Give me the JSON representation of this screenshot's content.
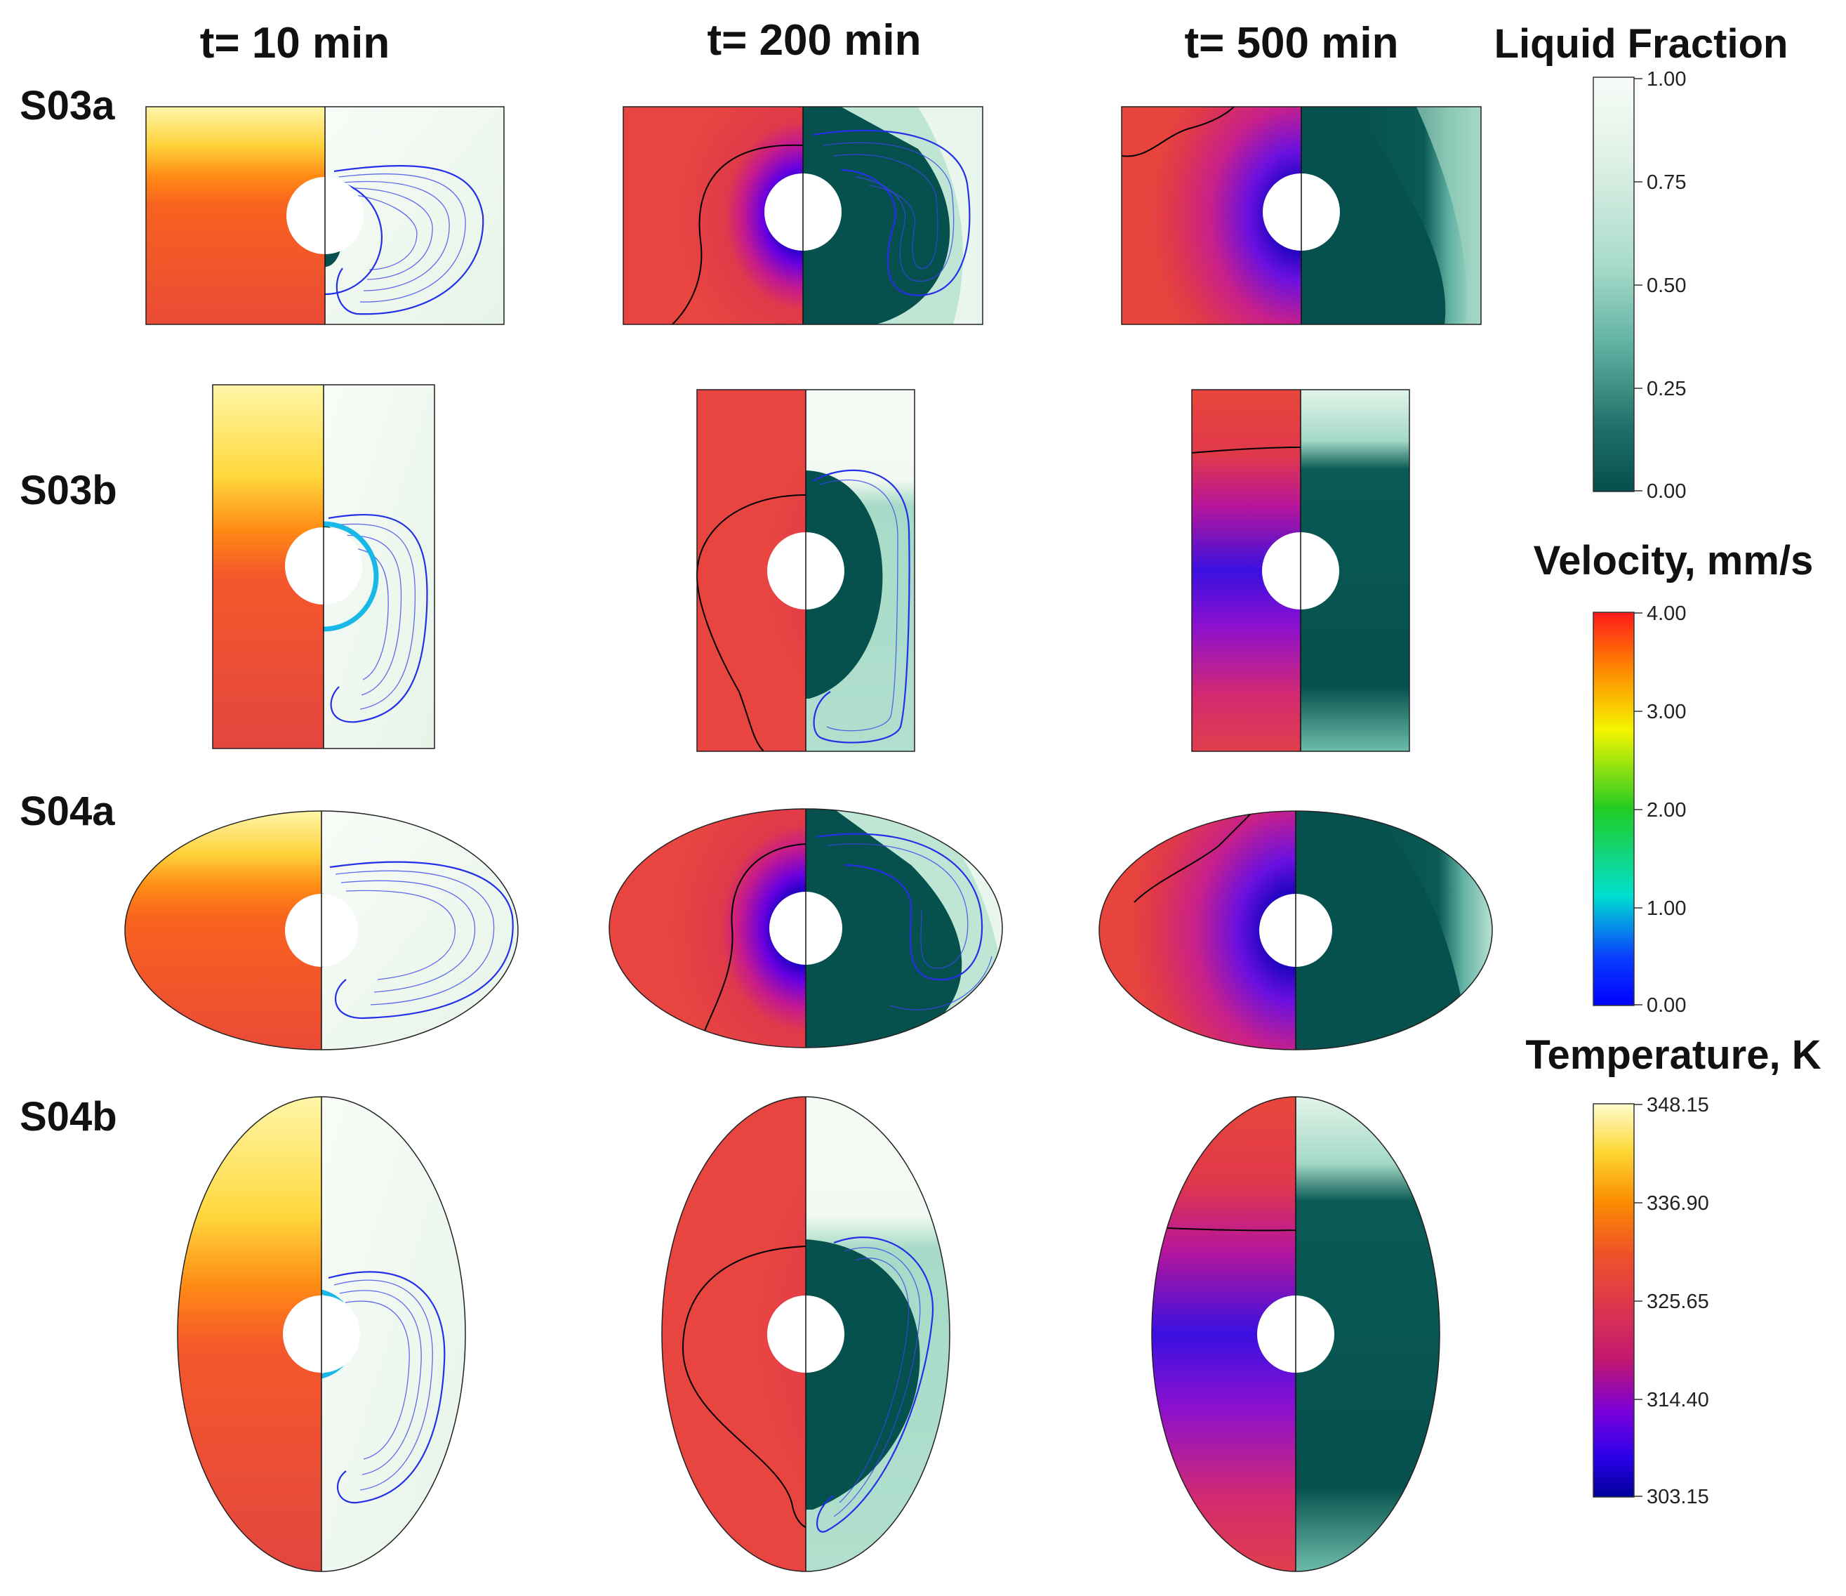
{
  "column_headers": [
    "t= 10 min",
    "t= 200 min",
    "t= 500 min"
  ],
  "row_labels": [
    "S03a",
    "S03b",
    "S04a",
    "S04b"
  ],
  "colorbars": [
    {
      "title": "Liquid Fraction",
      "ticks": [
        "1.00",
        "0.75",
        "0.50",
        "0.25",
        "0.00"
      ],
      "stops": [
        "#f7fbf7",
        "#dff1e6",
        "#a9dccb",
        "#5fb0a1",
        "#1f6e68",
        "#054f4c"
      ]
    },
    {
      "title": "Velocity, mm/s",
      "ticks": [
        "4.00",
        "3.00",
        "2.00",
        "1.00",
        "0.00"
      ],
      "stops": [
        "#ff1a1a",
        "#ff8c00",
        "#f5f500",
        "#22cc22",
        "#00e0d0",
        "#0a3cff",
        "#0000ff"
      ]
    },
    {
      "title": "Temperature, K",
      "ticks": [
        "348.15",
        "336.90",
        "325.65",
        "314.40",
        "303.15"
      ],
      "stops": [
        "#fffcd0",
        "#fdd835",
        "#fb8c00",
        "#f05228",
        "#e0394a",
        "#c21870",
        "#7c00d8",
        "#2a00e8",
        "#00009a"
      ]
    }
  ],
  "colors": {
    "temperature_hot": "#ffe98a",
    "temperature_mid": "#f25a24",
    "temperature_warm": "#e34848",
    "liquid": "#f4fbf4",
    "solid": "#06504d",
    "streamline": "#2430e8"
  }
}
